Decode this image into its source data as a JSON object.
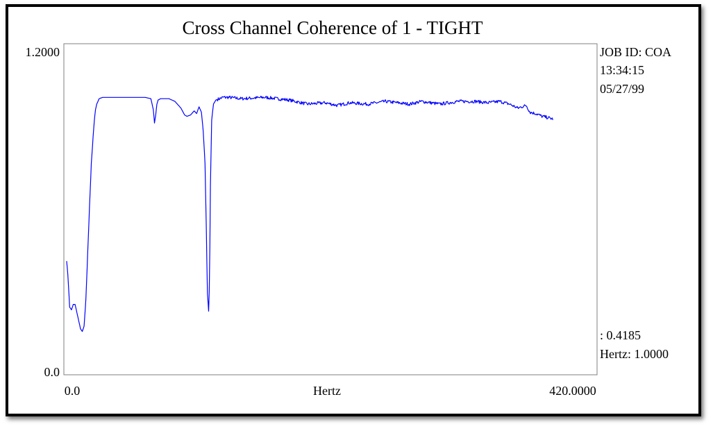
{
  "chart_data": {
    "type": "line",
    "title": "Cross Channel Coherence of  1 - TIGHT",
    "xlabel": "Hertz",
    "ylabel": "",
    "xlim": [
      0,
      420
    ],
    "ylim": [
      0,
      1.2
    ],
    "tick_labels": {
      "y_max": "1.2000",
      "y_min": "0.0",
      "x_min": "0.0",
      "x_max": "420.0000"
    },
    "grid": false,
    "legend": "none",
    "series_color": "#0000ff",
    "info": {
      "job_id": "JOB ID: COA",
      "time": "13:34:15",
      "date": "05/27/99",
      "cursor_value": ": 0.4185",
      "cursor_hertz": "Hertz: 1.0000"
    },
    "series": [
      {
        "x": [
          0,
          1,
          2.5,
          4,
          5.5,
          7,
          8.5,
          10,
          11.5,
          13,
          14.5,
          16,
          17.5,
          19,
          20.5,
          22,
          23,
          24,
          25,
          27,
          30,
          35,
          45,
          55,
          65,
          70,
          72,
          73,
          74,
          75,
          76,
          78,
          85,
          90,
          95,
          98,
          100,
          103,
          106,
          108,
          110,
          112,
          113.5,
          115,
          116,
          117,
          118,
          118.7,
          119.5,
          120.5,
          122,
          124,
          127,
          130,
          135,
          145,
          165,
          185,
          200,
          215,
          225,
          235,
          250,
          265,
          275,
          285,
          295,
          310,
          325,
          340,
          350,
          360,
          368,
          375,
          378,
          382,
          385,
          390,
          395,
          400,
          404
        ],
        "y": [
          0.42,
          0.37,
          0.25,
          0.24,
          0.26,
          0.26,
          0.23,
          0.2,
          0.17,
          0.16,
          0.18,
          0.28,
          0.45,
          0.62,
          0.78,
          0.88,
          0.94,
          0.98,
          1.0,
          1.02,
          1.025,
          1.025,
          1.025,
          1.025,
          1.025,
          1.02,
          0.98,
          0.93,
          0.96,
          1.0,
          1.015,
          1.02,
          1.02,
          1.01,
          0.985,
          0.96,
          0.955,
          0.96,
          0.975,
          0.965,
          0.99,
          0.97,
          0.9,
          0.78,
          0.55,
          0.3,
          0.235,
          0.34,
          0.7,
          0.94,
          1.0,
          1.015,
          1.02,
          1.025,
          1.025,
          1.02,
          1.025,
          1.015,
          1.0,
          1.005,
          0.995,
          1.005,
          1.0,
          1.01,
          1.005,
          1.0,
          1.01,
          1.0,
          1.01,
          1.01,
          1.005,
          1.01,
          1.0,
          0.985,
          0.99,
          0.995,
          0.97,
          0.965,
          0.955,
          0.95,
          0.945
        ]
      }
    ]
  }
}
